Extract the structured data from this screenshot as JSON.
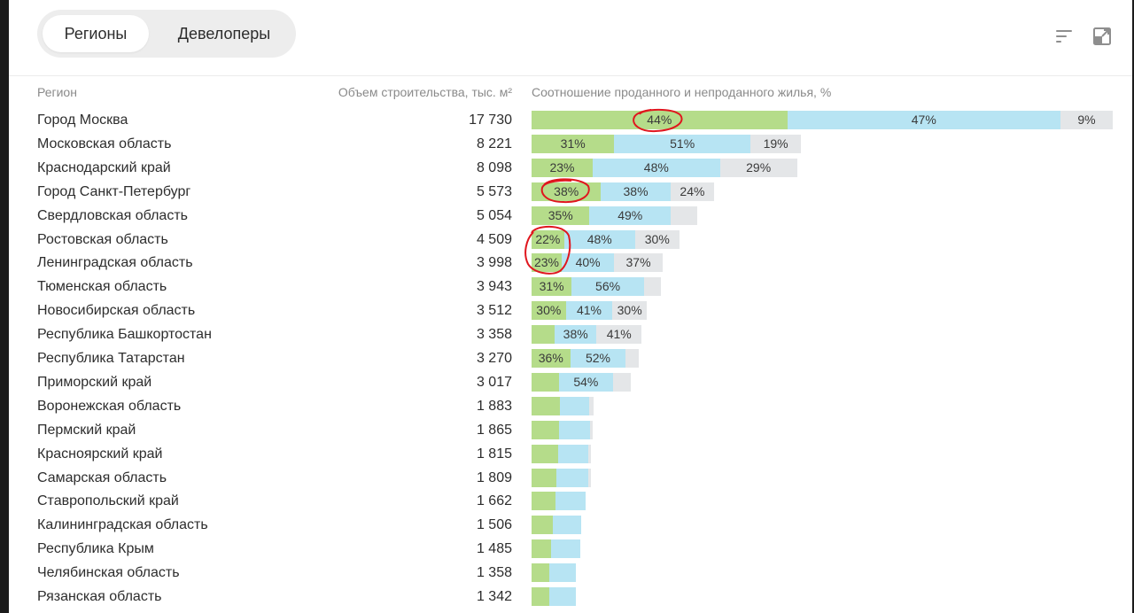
{
  "tabs": [
    {
      "label": "Регионы",
      "active": true
    },
    {
      "label": "Девелоперы",
      "active": false
    }
  ],
  "toolbar": {
    "icons": [
      "sort-icon",
      "expand-icon"
    ]
  },
  "columns": {
    "region": "Регион",
    "volume": "Объем строительства, тыс. м²",
    "ratio": "Соотношение проданного и непроданного жилья, %"
  },
  "colors": {
    "sold": "#b5dc8a",
    "unsold": "#b7e4f3",
    "other": "#e4e6e8",
    "annotation": "#e0161e"
  },
  "chart_data": {
    "type": "bar",
    "stacked": true,
    "xlabel": "Соотношение проданного и непроданного жилья, %",
    "categories": [
      "Город Москва",
      "Московская область",
      "Краснодарский край",
      "Город Санкт-Петербург",
      "Свердловская область",
      "Ростовская область",
      "Ленинградская область",
      "Тюменская область",
      "Новосибирская область",
      "Республика Башкортостан",
      "Республика Татарстан",
      "Приморский край",
      "Воронежская область",
      "Пермский край",
      "Красноярский край",
      "Самарская область",
      "Ставропольский край",
      "Калининградская область",
      "Республика Крым",
      "Челябинская область",
      "Рязанская область"
    ],
    "volumes": [
      17730,
      8221,
      8098,
      5573,
      5054,
      4509,
      3998,
      3943,
      3512,
      3358,
      3270,
      3017,
      1883,
      1865,
      1815,
      1809,
      1662,
      1506,
      1485,
      1358,
      1342
    ],
    "series": [
      {
        "values": [
          44,
          31,
          23,
          38,
          35,
          22,
          23,
          31,
          30,
          21,
          36,
          28,
          46,
          45,
          45,
          42,
          44,
          43,
          40,
          40,
          41
        ]
      },
      {
        "values": [
          47,
          51,
          48,
          38,
          49,
          48,
          40,
          56,
          41,
          38,
          52,
          54,
          48,
          51,
          51,
          54,
          56,
          57,
          60,
          60,
          59
        ]
      },
      {
        "values": [
          9,
          19,
          29,
          24,
          16,
          30,
          37,
          13,
          30,
          41,
          12,
          18,
          6,
          4,
          4,
          4,
          0,
          0,
          0,
          0,
          0
        ]
      }
    ],
    "labels": [
      [
        "44%",
        "47%",
        "9%"
      ],
      [
        "31%",
        "51%",
        "19%"
      ],
      [
        "23%",
        "48%",
        "29%"
      ],
      [
        "38%",
        "38%",
        "24%"
      ],
      [
        "35%",
        "49%",
        ""
      ],
      [
        "22%",
        "48%",
        "30%"
      ],
      [
        "23%",
        "40%",
        "37%"
      ],
      [
        "31%",
        "56%",
        ""
      ],
      [
        "30%",
        "41%",
        "30%"
      ],
      [
        "",
        "38%",
        "41%"
      ],
      [
        "36%",
        "52%",
        ""
      ],
      [
        "",
        "54%",
        ""
      ],
      [
        "",
        "",
        ""
      ],
      [
        "",
        "",
        ""
      ],
      [
        "",
        "",
        ""
      ],
      [
        "",
        "",
        ""
      ],
      [
        "",
        "",
        ""
      ],
      [
        "",
        "",
        ""
      ],
      [
        "",
        "",
        ""
      ],
      [
        "",
        "",
        ""
      ],
      [
        "",
        "",
        ""
      ]
    ],
    "volume_labels": [
      "17 730",
      "8 221",
      "8 098",
      "5 573",
      "5 054",
      "4 509",
      "3 998",
      "3 943",
      "3 512",
      "3 358",
      "3 270",
      "3 017",
      "1 883",
      "1 865",
      "1 815",
      "1 809",
      "1 662",
      "1 506",
      "1 485",
      "1 358",
      "1 342"
    ]
  }
}
